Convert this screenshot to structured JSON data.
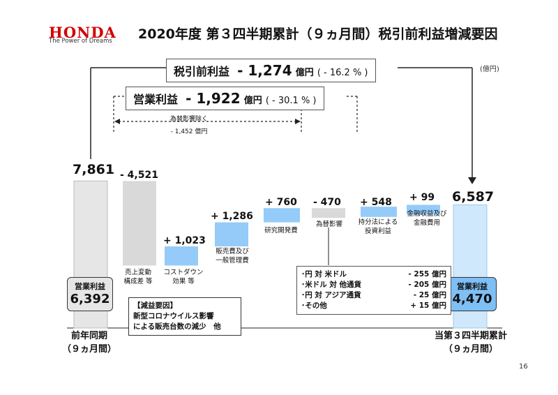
{
  "header": {
    "logo": "HONDA",
    "tagline": "The Power of Dreams",
    "title": "2020年度 第３四半期累計（９ヵ月間）税引前利益増減要因",
    "unit": "(億円)"
  },
  "pretax": {
    "label": "税引前利益",
    "value": "- 1,274",
    "unit": "億円",
    "pct": "( - 16.2 % )"
  },
  "operating": {
    "label": "営業利益",
    "value": "- 1,922",
    "unit": "億円",
    "pct": "( - 30.1 % )"
  },
  "fx_exclusion": {
    "line1": "為替影響除く",
    "line2": "- 1,452 億円"
  },
  "chart_data": {
    "type": "bar",
    "title": "",
    "xlabel": "",
    "ylabel": "",
    "categories": [
      "前年同期（９ヵ月間）",
      "売上変動 構成差 等",
      "コストダウン 効果 等",
      "販売費及び 一般管理費",
      "研究開発費",
      "為替影響",
      "持分法による 投資利益",
      "金融収益及び 金融費用",
      "当第３四半期累計（９ヵ月間）"
    ],
    "values": [
      7861,
      -4521,
      1023,
      1286,
      760,
      -470,
      548,
      99,
      6587
    ],
    "value_labels": [
      "7,861",
      "- 4,521",
      "+ 1,023",
      "+ 1,286",
      "+ 760",
      "- 470",
      "+ 548",
      "+ 99",
      "6,587"
    ],
    "operating_income": {
      "previous": "6,392",
      "current": "4,470",
      "label": "営業利益"
    },
    "colors": {
      "total_prev": "#e6e6e6",
      "total_curr": "#cfe8fb",
      "decrease": "#d9d9d9",
      "increase": "#94cbf9"
    }
  },
  "labels": {
    "sales": [
      "売上変動",
      "構成差 等"
    ],
    "cost": [
      "コストダウン",
      "効果 等"
    ],
    "sga": [
      "販売費及び",
      "一般管理費"
    ],
    "rnd": "研究開発費",
    "fx": "為替影響",
    "equity": [
      "持分法による",
      "投資利益"
    ],
    "finance": [
      "金融収益及び",
      "金融費用"
    ]
  },
  "fx_details": [
    {
      "name": "･円 対 米ドル",
      "value": "- 255 億円"
    },
    {
      "name": "･米ドル 対 他通貨",
      "value": "- 205 億円"
    },
    {
      "name": "･円 対 アジア通貨",
      "value": "- 25 億円"
    },
    {
      "name": "･その他",
      "value": "+ 15 億円"
    }
  ],
  "decrease_factors": {
    "title": "【減益要因】",
    "line1": "新型コロナウイルス影響",
    "line2": "による販売台数の減少　他"
  },
  "prev_period": {
    "line1": "前年同期",
    "line2": "（９ヵ月間）"
  },
  "curr_period": {
    "line1": "当第３四半期累計",
    "line2": "（９ヵ月間）"
  },
  "page": "16"
}
